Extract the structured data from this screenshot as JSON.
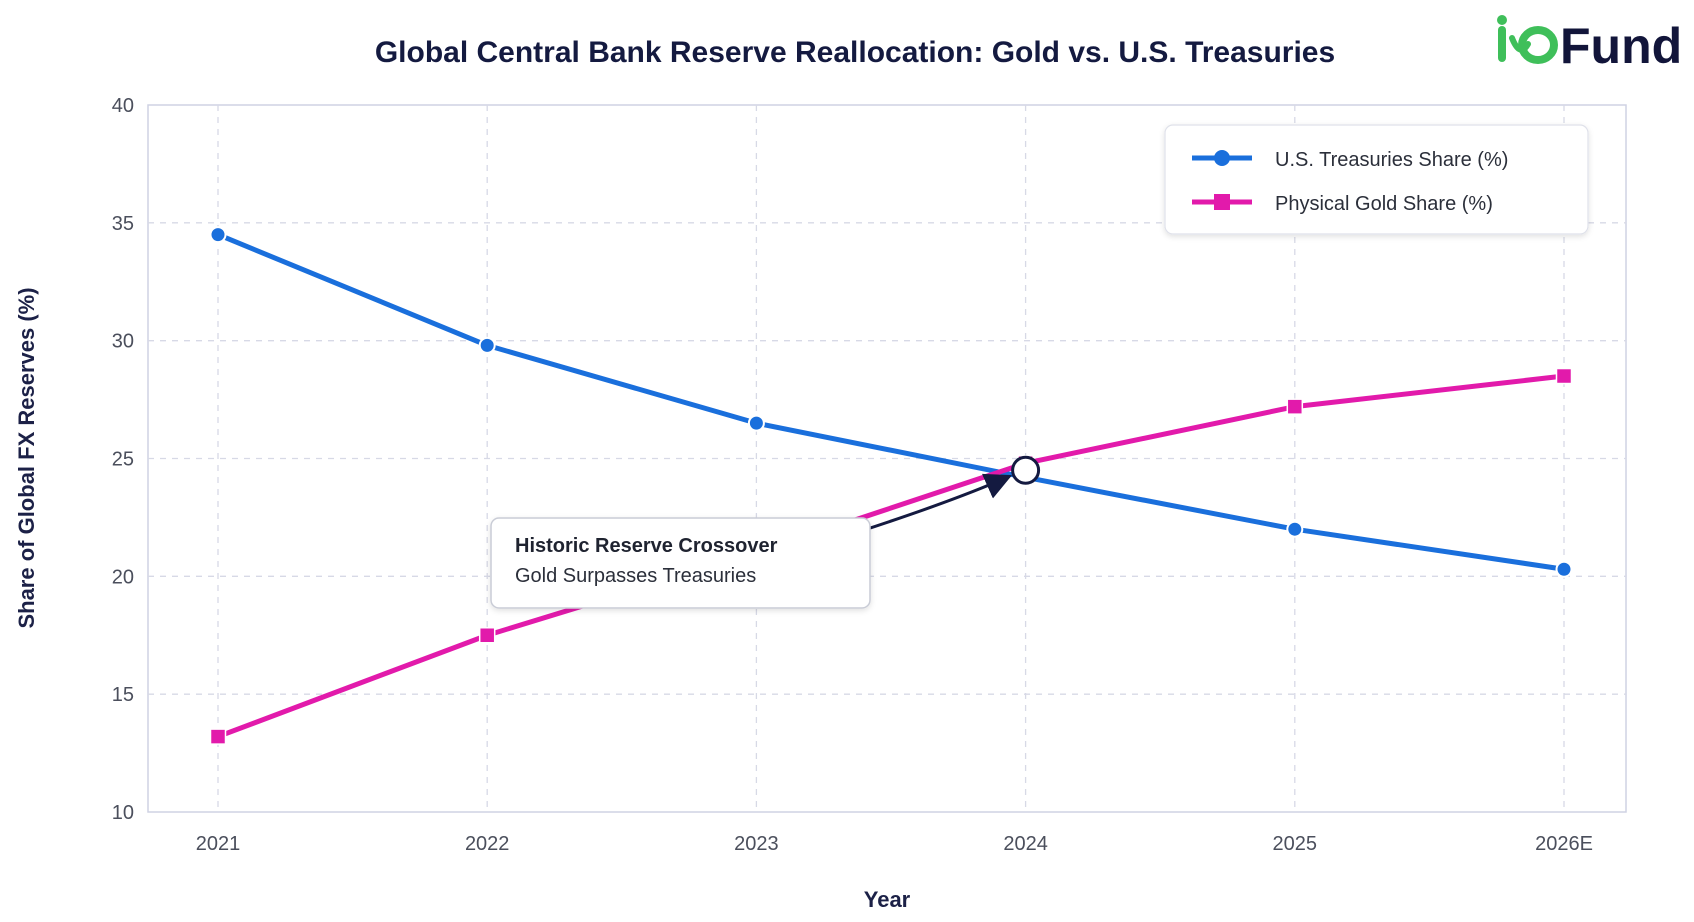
{
  "logo": {
    "text": "ioFund",
    "word": "Fund",
    "accent_color": "#3fbf5a",
    "text_color": "#12153a"
  },
  "chart_data": {
    "type": "line",
    "title": "Global Central Bank Reserve Reallocation: Gold vs. U.S. Treasuries",
    "xlabel": "Year",
    "ylabel": "Share of Global FX Reserves (%)",
    "categories": [
      "2021",
      "2022",
      "2023",
      "2024",
      "2025",
      "2026E"
    ],
    "ylim": [
      10,
      40
    ],
    "yticks": [
      10,
      15,
      20,
      25,
      30,
      35,
      40
    ],
    "grid": true,
    "legend_position": "top-right",
    "series": [
      {
        "name": "U.S. Treasuries Share (%)",
        "values": [
          34.5,
          29.8,
          26.5,
          24.2,
          22.0,
          20.3
        ],
        "color": "#1a6fdc",
        "marker": "circle"
      },
      {
        "name": "Physical Gold Share (%)",
        "values": [
          13.2,
          17.5,
          21.0,
          24.8,
          27.2,
          28.5
        ],
        "color": "#e21aab",
        "marker": "square"
      }
    ],
    "annotation": {
      "title": "Historic Reserve Crossover",
      "subtitle": "Gold Surpasses Treasuries",
      "target_category": "2024",
      "target_value": 24.5
    }
  }
}
